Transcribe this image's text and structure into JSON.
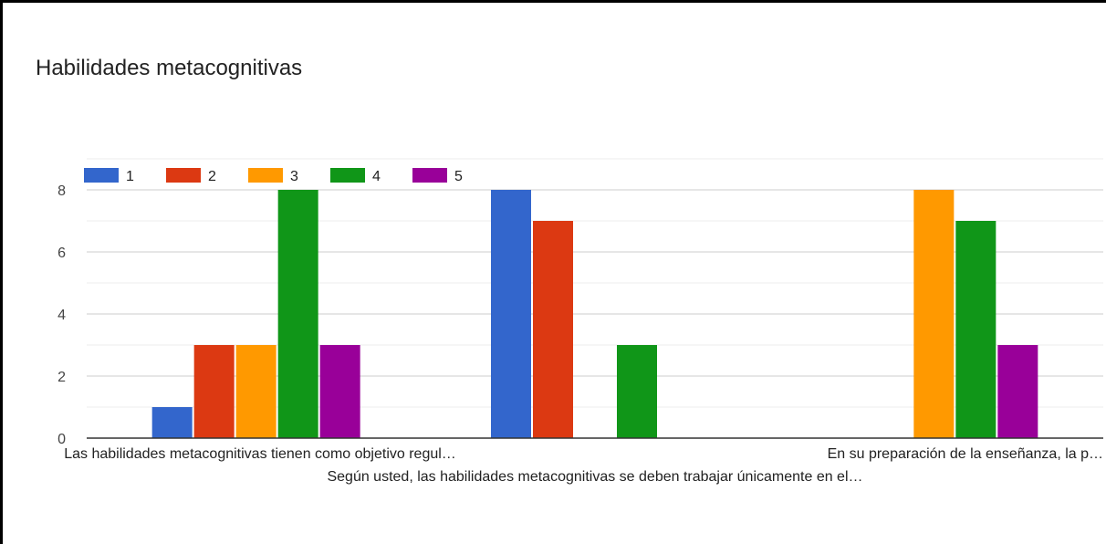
{
  "chart_data": {
    "type": "bar",
    "title": "Habilidades metacognitivas",
    "categories": [
      "Las habilidades metacognitivas tienen como objetivo regul…",
      "Según usted, las habilidades metacognitivas se deben trabajar únicamente en el…",
      "En su preparación de la enseñanza, la p…"
    ],
    "series": [
      {
        "name": "1",
        "values": [
          1,
          8,
          0
        ]
      },
      {
        "name": "2",
        "values": [
          3,
          7,
          0
        ]
      },
      {
        "name": "3",
        "values": [
          3,
          0,
          8
        ]
      },
      {
        "name": "4",
        "values": [
          8,
          3,
          7
        ]
      },
      {
        "name": "5",
        "values": [
          3,
          0,
          3
        ]
      }
    ],
    "colors": [
      "#3366cc",
      "#dc3912",
      "#ff9900",
      "#109618",
      "#990099"
    ],
    "y_ticks": [
      "0",
      "2",
      "4",
      "6",
      "8"
    ],
    "ylim": [
      0,
      8
    ],
    "grid": true,
    "legend_position": "top-left"
  }
}
